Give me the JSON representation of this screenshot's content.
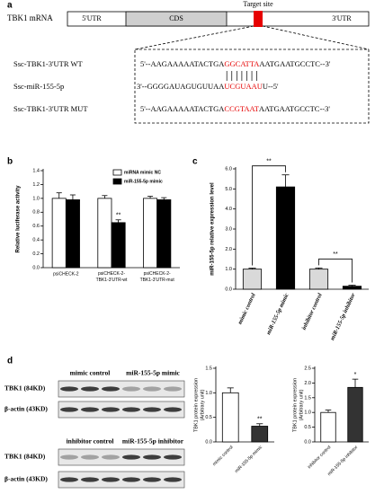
{
  "panel_a": {
    "label": "a",
    "gene": "TBK1 mRNA",
    "regions": [
      "5'UTR",
      "CDS",
      "3'UTR"
    ],
    "target": "Target site",
    "sequences": [
      {
        "name": "Ssc-TBK1-3'UTR WT",
        "pre": "5'--AAGAAAAATACTGA",
        "site": "GGCATTA",
        "post": "AATGAATGCCTC--3'"
      },
      {
        "name": "Ssc-miR-155-5p",
        "pre": "3'--GGGGAUAGUGUUAA",
        "site": "UCGUAAU",
        "post": "U--5'"
      },
      {
        "name": "Ssc-TBK1-3'UTR MUT",
        "pre": "5'--AAGAAAAATACTGA",
        "site": "CCGTAAT",
        "post": "AATGAATGCCTC--3'"
      }
    ]
  },
  "chart_data": [
    {
      "panel_label": "b",
      "type": "bar",
      "ylabel": "Relative luciferase activity",
      "categories": [
        "psiCHECK-2",
        "psiCHECK-2-TBK1-3'UTR-wt",
        "psiCHECK-2-TBK1-3'UTR-mut"
      ],
      "series": [
        {
          "name": "miRNA mimic NC",
          "color": "#ffffff",
          "values": [
            1.0,
            1.0,
            1.0
          ],
          "errors": [
            0.08,
            0.04,
            0.03
          ]
        },
        {
          "name": "miR-155-5p mimic",
          "color": "#000000",
          "values": [
            0.98,
            0.65,
            0.98
          ],
          "errors": [
            0.07,
            0.04,
            0.03
          ]
        }
      ],
      "ylim": [
        0,
        1.4
      ],
      "yticks": [
        {
          "value": 0,
          "label": "0.0"
        },
        {
          "value": 0.2,
          "label": "0.2"
        },
        {
          "value": 0.4,
          "label": "0.4"
        },
        {
          "value": 0.6,
          "label": "0.6"
        },
        {
          "value": 0.8,
          "label": "0.8"
        },
        {
          "value": 1,
          "label": "1.0"
        },
        {
          "value": 1.2,
          "label": "1.2"
        },
        {
          "value": 1.4,
          "label": "1.4"
        }
      ],
      "annotations": [
        {
          "text": "**",
          "category": 1,
          "series": 1
        }
      ]
    },
    {
      "panel_label": "c",
      "type": "bar",
      "ylabel": "miR-155-5p relative expression level",
      "categories": [
        "mimic control",
        "miR-155-5p mimic",
        "inhibitor control",
        "miR-155-5p inhibitor"
      ],
      "series": [
        {
          "colors": [
            "#d9d9d9",
            "#000000",
            "#d9d9d9",
            "#000000"
          ],
          "values": [
            1.0,
            5.1,
            1.0,
            0.15
          ],
          "errors": [
            0.05,
            0.6,
            0.06,
            0.05
          ]
        }
      ],
      "ylim": [
        0,
        6
      ],
      "yticks": [
        {
          "value": 0,
          "label": "0.0"
        },
        {
          "value": 1,
          "label": "1.0"
        },
        {
          "value": 2,
          "label": "2.0"
        },
        {
          "value": 3,
          "label": "3.0"
        },
        {
          "value": 4,
          "label": "4.0"
        },
        {
          "value": 5,
          "label": "5.0"
        },
        {
          "value": 6,
          "label": "6.0"
        }
      ],
      "brackets": [
        {
          "text": "**",
          "from": 0,
          "to": 1
        },
        {
          "text": "**",
          "from": 2,
          "to": 3
        }
      ]
    },
    {
      "type": "bar",
      "ylabel": [
        "TBK1 protein expression",
        "(Arbitrary unit)"
      ],
      "categories": [
        "mimic control",
        "miR-155-5p mimic"
      ],
      "series": [
        {
          "colors": [
            "#ffffff",
            "#333333"
          ],
          "values": [
            1.0,
            0.32
          ],
          "errors": [
            0.1,
            0.05
          ]
        }
      ],
      "ylim": [
        0,
        1.5
      ],
      "yticks": [
        {
          "value": 0,
          "label": "0.0"
        },
        {
          "value": 0.5,
          "label": "0.5"
        },
        {
          "value": 1,
          "label": "1.0"
        },
        {
          "value": 1.5,
          "label": "1.5"
        }
      ],
      "annotations": [
        {
          "text": "**",
          "category": 1,
          "series": 0
        }
      ]
    },
    {
      "type": "bar",
      "ylabel": [
        "TBK1 protein expression",
        "(Arbitrary unit)"
      ],
      "categories": [
        "inhibitor control",
        "miR-155-5p inhibitor"
      ],
      "series": [
        {
          "colors": [
            "#ffffff",
            "#333333"
          ],
          "values": [
            1.0,
            1.85
          ],
          "errors": [
            0.08,
            0.28
          ]
        }
      ],
      "ylim": [
        0,
        2.5
      ],
      "yticks": [
        {
          "value": 0,
          "label": "0.0"
        },
        {
          "value": 0.5,
          "label": "0.5"
        },
        {
          "value": 1,
          "label": "1.0"
        },
        {
          "value": 1.5,
          "label": "1.5"
        },
        {
          "value": 2,
          "label": "2.0"
        },
        {
          "value": 2.5,
          "label": "2.5"
        }
      ],
      "annotations": [
        {
          "text": "*",
          "category": 1,
          "series": 0
        }
      ]
    }
  ],
  "panel_d": {
    "label": "d",
    "blots": [
      {
        "groups": [
          "mimic control",
          "miR-155-5p mimic"
        ],
        "rows": [
          "TBK1 (84KD)",
          "β-actin (43KD)"
        ]
      },
      {
        "groups": [
          "inhibitor control",
          "miR-155-5p inhibitor"
        ],
        "rows": [
          "TBK1 (84KD)",
          "β-actin (43KD)"
        ]
      }
    ]
  }
}
